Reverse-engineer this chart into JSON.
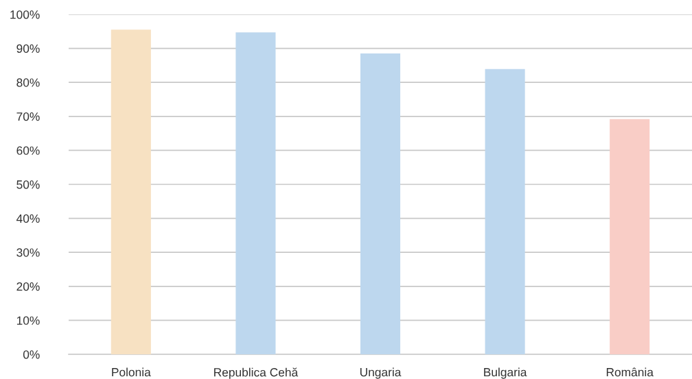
{
  "chart_data": {
    "type": "bar",
    "categories": [
      "Polonia",
      "Republica Cehă",
      "Ungaria",
      "Bulgaria",
      "România"
    ],
    "values": [
      95.5,
      94.7,
      88.5,
      83.9,
      69.2
    ],
    "colors": [
      "#f7e1c2",
      "#bdd7ee",
      "#bdd7ee",
      "#bdd7ee",
      "#f9cdc6"
    ],
    "ylim": [
      0,
      100
    ],
    "yticks": [
      {
        "value": 0,
        "label": "0%"
      },
      {
        "value": 10,
        "label": "10%"
      },
      {
        "value": 20,
        "label": "20%"
      },
      {
        "value": 30,
        "label": "30%"
      },
      {
        "value": 40,
        "label": "40%"
      },
      {
        "value": 50,
        "label": "50%"
      },
      {
        "value": 60,
        "label": "60%"
      },
      {
        "value": 70,
        "label": "70%"
      },
      {
        "value": 80,
        "label": "80%"
      },
      {
        "value": 90,
        "label": "90%"
      },
      {
        "value": 100,
        "label": "100%"
      }
    ],
    "grid": "y"
  }
}
